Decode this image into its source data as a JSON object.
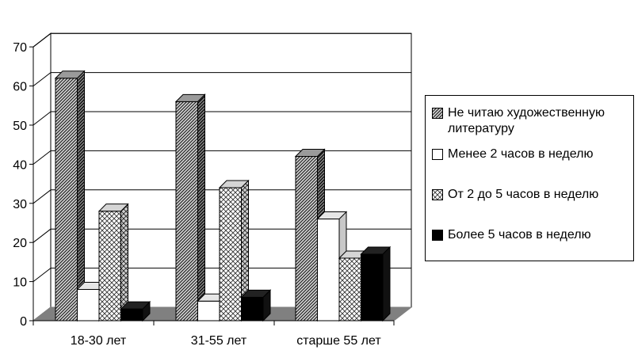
{
  "chart_data": {
    "type": "bar",
    "title": "",
    "xlabel": "",
    "ylabel": "",
    "ylim": [
      0,
      70
    ],
    "yticks": [
      0,
      10,
      20,
      30,
      40,
      50,
      60,
      70
    ],
    "grid": true,
    "legend_position": "right",
    "categories": [
      "18-30 лет",
      "31-55 лет",
      "старше 55 лет"
    ],
    "series": [
      {
        "name": "Не читаю художественную литературу",
        "values": [
          62,
          56,
          42
        ],
        "pattern": "diagonal-hatch",
        "color": "#555555"
      },
      {
        "name": "Менее 2 часов в неделю",
        "values": [
          8,
          5,
          26
        ],
        "pattern": "solid",
        "color": "#ffffff"
      },
      {
        "name": "От 2 до 5 часов в неделю",
        "values": [
          28,
          34,
          16
        ],
        "pattern": "crosshatch",
        "color": "#ffffff"
      },
      {
        "name": "Более 5 часов в неделю",
        "values": [
          3,
          6,
          17
        ],
        "pattern": "solid",
        "color": "#000000"
      }
    ]
  }
}
